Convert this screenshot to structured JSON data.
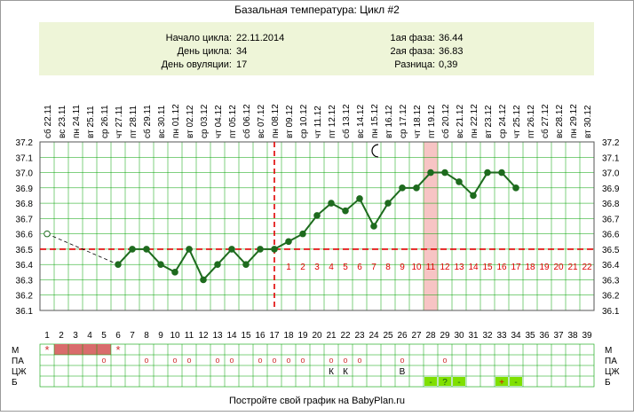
{
  "title": "Базальная температура: Цикл #2",
  "info": {
    "left": [
      {
        "label": "Начало цикла:",
        "value": "22.11.2014"
      },
      {
        "label": "День цикла:",
        "value": "34"
      },
      {
        "label": "День овуляции:",
        "value": "17"
      }
    ],
    "right": [
      {
        "label": "1ая фаза:",
        "value": "36.44"
      },
      {
        "label": "2ая фаза:",
        "value": "36.83"
      },
      {
        "label": "Разница:",
        "value": "0,39"
      }
    ]
  },
  "footer": "Постройте свой график на BabyPlan.ru",
  "colors": {
    "line": "#1e6b1e",
    "point": "#1e6b1e",
    "coverline": "#e00000",
    "ovulation_line": "#e00000",
    "highlight": "#f7c4c4",
    "info_bg": "#eef5d8",
    "grid": "#00a000",
    "phase_number": "#e00000",
    "period_block": "#d96c6c",
    "b_cell": "#7fe000"
  },
  "chart_data": {
    "type": "line",
    "title": "Базальная температура: Цикл #2",
    "ylim": [
      36.1,
      37.2
    ],
    "yticks": [
      "37.2",
      "37.1",
      "37.0",
      "36.9",
      "36.8",
      "36.7",
      "36.6",
      "36.5",
      "36.4",
      "36.3",
      "36.2",
      "36.1"
    ],
    "weekdays": [
      "сб",
      "вс",
      "пн",
      "вт",
      "ср",
      "чт",
      "пт",
      "сб",
      "вс",
      "пн",
      "вт",
      "ср",
      "чт",
      "пт",
      "сб",
      "вс",
      "пн",
      "вт",
      "ср",
      "чт",
      "пт",
      "сб",
      "вс",
      "пн",
      "вт",
      "ср",
      "чт",
      "пт",
      "сб",
      "вс",
      "пн",
      "вт",
      "ср",
      "чт",
      "пт",
      "сб",
      "вс",
      "пн",
      "вт"
    ],
    "dates": [
      "22.11",
      "23.11",
      "24.11",
      "25.11",
      "26.11",
      "27.11",
      "28.11",
      "29.11",
      "30.11",
      "01.12",
      "02.12",
      "03.12",
      "04.12",
      "05.12",
      "06.12",
      "07.12",
      "08.12",
      "09.12",
      "10.12",
      "11.12",
      "12.12",
      "13.12",
      "14.12",
      "15.12",
      "16.12",
      "17.12",
      "18.12",
      "19.12",
      "20.12",
      "21.12",
      "22.12",
      "23.12",
      "24.12",
      "25.12",
      "26.12",
      "27.12",
      "28.12",
      "29.12",
      "30.12"
    ],
    "days": [
      "1",
      "2",
      "3",
      "4",
      "5",
      "6",
      "7",
      "8",
      "9",
      "10",
      "11",
      "12",
      "13",
      "14",
      "15",
      "16",
      "17",
      "18",
      "19",
      "20",
      "21",
      "22",
      "23",
      "24",
      "25",
      "26",
      "27",
      "28",
      "29",
      "30",
      "31",
      "32",
      "33",
      "34",
      "35",
      "36",
      "37",
      "38",
      "39"
    ],
    "series": [
      {
        "values": [
          36.6,
          null,
          null,
          null,
          null,
          36.4,
          36.5,
          36.5,
          36.4,
          36.35,
          36.5,
          36.3,
          36.4,
          36.5,
          36.4,
          36.5,
          36.5,
          36.55,
          36.6,
          36.72,
          36.8,
          36.75,
          36.83,
          36.65,
          36.8,
          36.9,
          36.9,
          37.0,
          37.0,
          36.94,
          36.85,
          37.0,
          37.0,
          36.9,
          null,
          null,
          null,
          null,
          null
        ]
      }
    ],
    "open_points": [
      1
    ],
    "dashed_segment": [
      1,
      6
    ],
    "coverline": 36.5,
    "ovulation_day": 17,
    "highlight_day": 28,
    "phase_numbers": [
      "1",
      "2",
      "3",
      "4",
      "5",
      "6",
      "7",
      "8",
      "9",
      "10",
      "11",
      "12",
      "13",
      "14",
      "15",
      "16",
      "17",
      "18",
      "19",
      "20",
      "21",
      "22"
    ],
    "moon_day": 24,
    "grid": true
  },
  "rows": {
    "labels": [
      "М",
      "ПА",
      "ЦЖ",
      "Б"
    ],
    "m_star_days": [
      1,
      6
    ],
    "m_block_days": [
      2,
      3,
      4,
      5
    ],
    "pa_days": [
      5,
      8,
      10,
      11,
      13,
      14,
      16,
      17,
      18,
      19,
      21,
      22,
      23,
      26,
      29
    ],
    "pa_symbol": "o",
    "ts_entries": [
      {
        "day": 21,
        "text": "К"
      },
      {
        "day": 22,
        "text": "К"
      },
      {
        "day": 26,
        "text": "В"
      }
    ],
    "b_entries": [
      {
        "day": 28,
        "text": "-"
      },
      {
        "day": 29,
        "text": "?"
      },
      {
        "day": 30,
        "text": "-"
      },
      {
        "day": 33,
        "text": "+"
      },
      {
        "day": 34,
        "text": "-"
      }
    ],
    "star_symbol": "*"
  }
}
